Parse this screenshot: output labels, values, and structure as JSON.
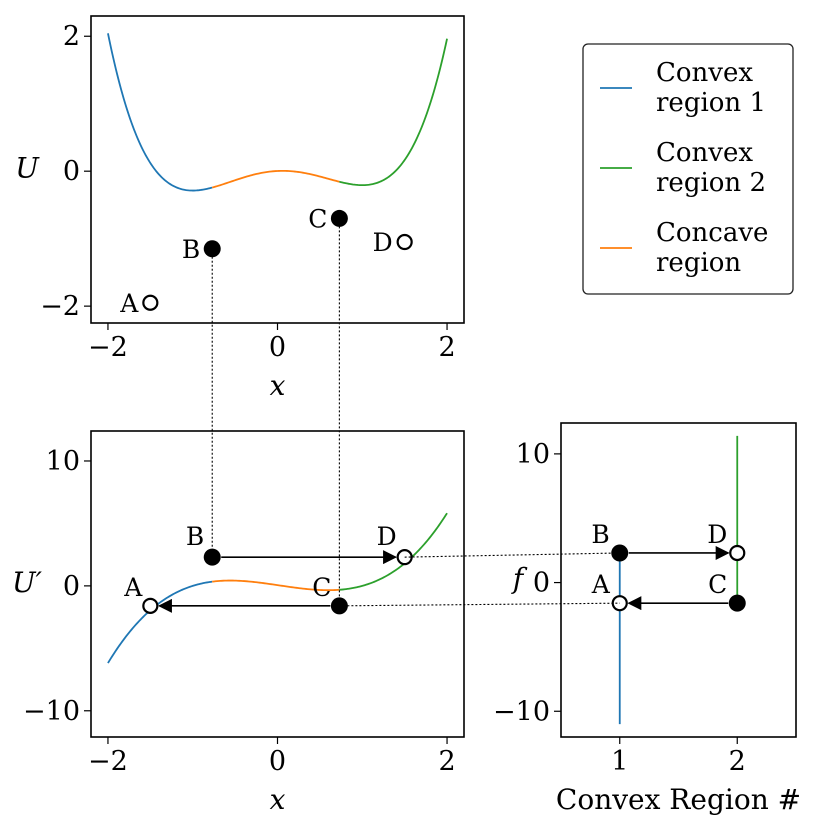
{
  "legend": {
    "placement": "upper-right",
    "entries": [
      {
        "lines": [
          "Convex",
          "region 1"
        ],
        "color": "#1f77b4"
      },
      {
        "lines": [
          "Convex",
          "region 2"
        ],
        "color": "#2ca02c"
      },
      {
        "lines": [
          "Concave",
          "region"
        ],
        "color": "#ff7f0e"
      }
    ]
  },
  "colors": {
    "convex1": "#1f77b4",
    "convex2": "#2ca02c",
    "concave": "#ff7f0e"
  },
  "chart_data": [
    {
      "type": "line",
      "panel": "top-left",
      "xlabel": "x",
      "ylabel": "U",
      "xlim": [
        -2.2,
        2.2
      ],
      "ylim": [
        -2.25,
        2.3
      ],
      "xticks": [
        -2,
        0,
        2
      ],
      "yticks": [
        -2,
        0,
        2
      ],
      "xtick_labels": [
        "−2",
        "0",
        "2"
      ],
      "ytick_labels": [
        "−2",
        "0",
        "2"
      ],
      "function": "U(x) = x^4/4 - 0.02 x^3 - x^2/2 + 0.06 x + 0.003",
      "series": [
        {
          "name": "Convex region 1",
          "x_range": [
            -2.0,
            -0.77
          ],
          "color": "#1f77b4"
        },
        {
          "name": "Concave region",
          "x_range": [
            -0.77,
            0.73
          ],
          "color": "#ff7f0e"
        },
        {
          "name": "Convex region 2",
          "x_range": [
            0.73,
            2.0
          ],
          "color": "#2ca02c"
        }
      ],
      "points": [
        {
          "label": "A",
          "x": -1.5,
          "y": -1.95,
          "filled": false
        },
        {
          "label": "B",
          "x": -0.77,
          "y": -1.15,
          "filled": true
        },
        {
          "label": "C",
          "x": 0.73,
          "y": -0.7,
          "filled": true
        },
        {
          "label": "D",
          "x": 1.5,
          "y": -1.05,
          "filled": false
        }
      ]
    },
    {
      "type": "line",
      "panel": "bottom-left",
      "xlabel": "x",
      "ylabel": "U′",
      "xlim": [
        -2.2,
        2.2
      ],
      "ylim": [
        -12.1,
        12.4
      ],
      "xticks": [
        -2,
        0,
        2
      ],
      "yticks": [
        -10,
        0,
        10
      ],
      "xtick_labels": [
        "−2",
        "0",
        "2"
      ],
      "ytick_labels": [
        "−10",
        "0",
        "10"
      ],
      "function": "U'(x) = x^3 - 0.06 x^2 - x + 0.06",
      "series": [
        {
          "name": "Convex region 1",
          "x_range": [
            -2.0,
            -0.77
          ],
          "color": "#1f77b4"
        },
        {
          "name": "Concave region",
          "x_range": [
            -0.77,
            0.73
          ],
          "color": "#ff7f0e"
        },
        {
          "name": "Convex region 2",
          "x_range": [
            0.73,
            2.0
          ],
          "color": "#2ca02c"
        }
      ],
      "points": [
        {
          "label": "A",
          "x": -1.5,
          "y": -1.6,
          "filled": false
        },
        {
          "label": "B",
          "x": -0.77,
          "y": 2.3,
          "filled": true
        },
        {
          "label": "C",
          "x": 0.73,
          "y": -1.6,
          "filled": true
        },
        {
          "label": "D",
          "x": 1.5,
          "y": 2.3,
          "filled": false
        }
      ],
      "arrows": [
        {
          "from": "B",
          "to": "D"
        },
        {
          "from": "C",
          "to": "A"
        }
      ]
    },
    {
      "type": "line",
      "panel": "bottom-right",
      "xlabel": "Convex Region #",
      "ylabel": "f",
      "xlim": [
        0.5,
        2.5
      ],
      "ylim": [
        -12.0,
        12.4
      ],
      "xticks": [
        1,
        2
      ],
      "yticks": [
        -10,
        0,
        10
      ],
      "xtick_labels": [
        "1",
        "2"
      ],
      "ytick_labels": [
        "−10",
        "0",
        "10"
      ],
      "series": [
        {
          "name": "Convex region 1",
          "x": [
            1,
            1
          ],
          "y": [
            -11.0,
            2.3
          ],
          "color": "#1f77b4"
        },
        {
          "name": "Convex region 2",
          "x": [
            2,
            2
          ],
          "y": [
            -1.6,
            11.4
          ],
          "color": "#2ca02c"
        }
      ],
      "points": [
        {
          "label": "A",
          "x": 1,
          "y": -1.6,
          "filled": false
        },
        {
          "label": "B",
          "x": 1,
          "y": 2.3,
          "filled": true
        },
        {
          "label": "C",
          "x": 2,
          "y": -1.6,
          "filled": true
        },
        {
          "label": "D",
          "x": 2,
          "y": 2.3,
          "filled": false
        }
      ],
      "arrows": [
        {
          "from": "B",
          "to": "D"
        },
        {
          "from": "C",
          "to": "A"
        }
      ]
    }
  ]
}
